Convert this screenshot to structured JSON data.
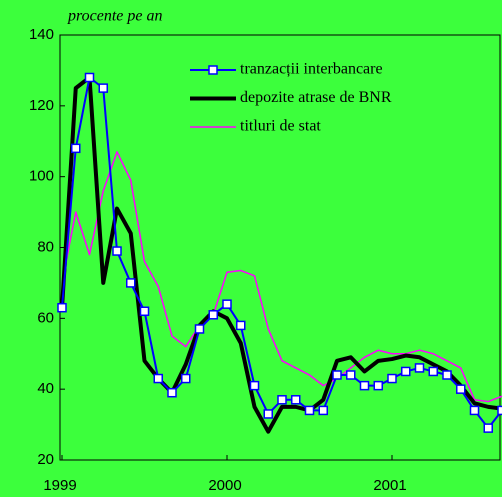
{
  "chart_data": {
    "type": "line",
    "y_axis_label": "procente pe an",
    "categories": [
      "1999",
      null,
      null,
      null,
      null,
      null,
      null,
      null,
      null,
      null,
      null,
      null,
      "2000",
      null,
      null,
      null,
      null,
      null,
      null,
      null,
      null,
      null,
      null,
      null,
      "2001",
      null,
      null,
      null,
      null,
      null,
      null,
      null,
      null
    ],
    "ylim": [
      20,
      140
    ],
    "yticks": [
      20,
      40,
      60,
      80,
      100,
      120,
      140
    ],
    "grid": false,
    "legend": "top-right",
    "series": [
      {
        "name": "tranzacții interbancare",
        "color": "#0000ff",
        "marker": "square",
        "values": [
          63,
          108,
          128,
          125,
          79,
          70,
          62,
          43,
          39,
          43,
          57,
          61,
          64,
          58,
          41,
          33,
          37,
          37,
          34,
          34,
          44,
          44,
          41,
          41,
          43,
          45,
          46,
          45,
          44,
          40,
          34,
          29,
          34
        ]
      },
      {
        "name": "depozite atrase de BNR",
        "color": "#000000",
        "values": [
          63,
          125,
          128,
          70,
          91,
          84,
          48,
          43,
          39,
          47,
          58,
          62,
          60,
          53,
          35,
          28,
          35,
          35,
          34,
          37,
          48,
          49,
          45,
          48,
          48.5,
          49.5,
          49,
          47,
          45,
          41,
          36,
          35,
          34.5
        ]
      },
      {
        "name": "titluri de stat",
        "color": "#ff00ff",
        "values": [
          70,
          90,
          78,
          96,
          107,
          99,
          76,
          69,
          55,
          52,
          58,
          61,
          73,
          73.5,
          72,
          57,
          48,
          46,
          44,
          41,
          43,
          46,
          49,
          51,
          50,
          50,
          51,
          50,
          48,
          46,
          37,
          36.5,
          38
        ]
      }
    ]
  }
}
